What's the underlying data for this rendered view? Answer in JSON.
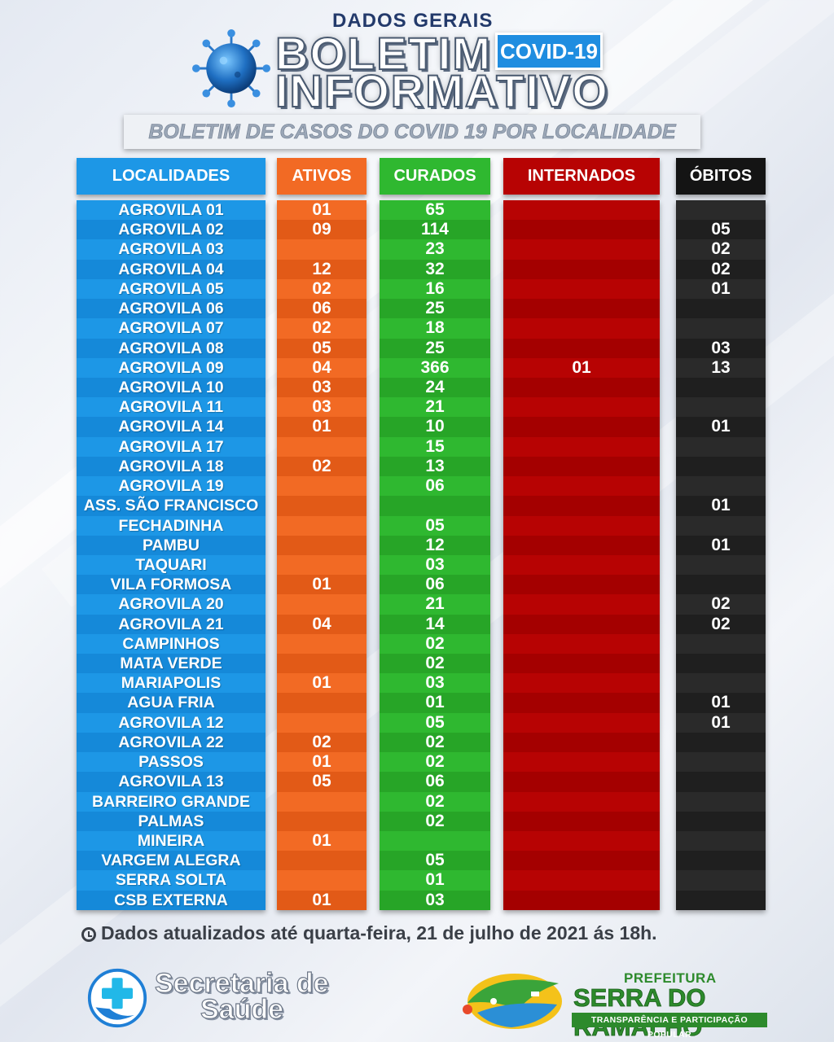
{
  "header": {
    "top_label": "DADOS GERAIS",
    "title_line1": "BOLETIM",
    "title_line2": "INFORMATIVO",
    "badge": "COVID-19",
    "subtitle": "BOLETIM DE CASOS DO COVID 19 POR LOCALIDADE"
  },
  "colors": {
    "localidades": "#1d97e6",
    "ativos": "#f26a24",
    "curados": "#2fb830",
    "internados": "#b70303",
    "obitos": "#1f1f1f"
  },
  "columns": {
    "localidades": "LOCALIDADES",
    "ativos": "ATIVOS",
    "curados": "CURADOS",
    "internados": "INTERNADOS",
    "obitos": "ÓBITOS"
  },
  "rows": [
    {
      "localidade": "AGROVILA 01",
      "ativos": "01",
      "curados": "65",
      "internados": "",
      "obitos": ""
    },
    {
      "localidade": "AGROVILA 02",
      "ativos": "09",
      "curados": "114",
      "internados": "",
      "obitos": "05"
    },
    {
      "localidade": "AGROVILA 03",
      "ativos": "",
      "curados": "23",
      "internados": "",
      "obitos": "02"
    },
    {
      "localidade": "AGROVILA 04",
      "ativos": "12",
      "curados": "32",
      "internados": "",
      "obitos": "02"
    },
    {
      "localidade": "AGROVILA 05",
      "ativos": "02",
      "curados": "16",
      "internados": "",
      "obitos": "01"
    },
    {
      "localidade": "AGROVILA 06",
      "ativos": "06",
      "curados": "25",
      "internados": "",
      "obitos": ""
    },
    {
      "localidade": "AGROVILA 07",
      "ativos": "02",
      "curados": "18",
      "internados": "",
      "obitos": ""
    },
    {
      "localidade": "AGROVILA 08",
      "ativos": "05",
      "curados": "25",
      "internados": "",
      "obitos": "03"
    },
    {
      "localidade": "AGROVILA 09",
      "ativos": "04",
      "curados": "366",
      "internados": "01",
      "obitos": "13"
    },
    {
      "localidade": "AGROVILA 10",
      "ativos": "03",
      "curados": "24",
      "internados": "",
      "obitos": ""
    },
    {
      "localidade": "AGROVILA 11",
      "ativos": "03",
      "curados": "21",
      "internados": "",
      "obitos": ""
    },
    {
      "localidade": "AGROVILA 14",
      "ativos": "01",
      "curados": "10",
      "internados": "",
      "obitos": "01"
    },
    {
      "localidade": "AGROVILA 17",
      "ativos": "",
      "curados": "15",
      "internados": "",
      "obitos": ""
    },
    {
      "localidade": "AGROVILA 18",
      "ativos": "02",
      "curados": "13",
      "internados": "",
      "obitos": ""
    },
    {
      "localidade": "AGROVILA 19",
      "ativos": "",
      "curados": "06",
      "internados": "",
      "obitos": ""
    },
    {
      "localidade": "ASS. SÃO FRANCISCO",
      "ativos": "",
      "curados": "",
      "internados": "",
      "obitos": "01"
    },
    {
      "localidade": "FECHADINHA",
      "ativos": "",
      "curados": "05",
      "internados": "",
      "obitos": ""
    },
    {
      "localidade": "PAMBU",
      "ativos": "",
      "curados": "12",
      "internados": "",
      "obitos": "01"
    },
    {
      "localidade": "TAQUARI",
      "ativos": "",
      "curados": "03",
      "internados": "",
      "obitos": ""
    },
    {
      "localidade": "VILA FORMOSA",
      "ativos": "01",
      "curados": "06",
      "internados": "",
      "obitos": ""
    },
    {
      "localidade": "AGROVILA 20",
      "ativos": "",
      "curados": "21",
      "internados": "",
      "obitos": "02"
    },
    {
      "localidade": "AGROVILA 21",
      "ativos": "04",
      "curados": "14",
      "internados": "",
      "obitos": "02"
    },
    {
      "localidade": "CAMPINHOS",
      "ativos": "",
      "curados": "02",
      "internados": "",
      "obitos": ""
    },
    {
      "localidade": "MATA VERDE",
      "ativos": "",
      "curados": "02",
      "internados": "",
      "obitos": ""
    },
    {
      "localidade": "MARIAPOLIS",
      "ativos": "01",
      "curados": "03",
      "internados": "",
      "obitos": ""
    },
    {
      "localidade": "AGUA FRIA",
      "ativos": "",
      "curados": "01",
      "internados": "",
      "obitos": "01"
    },
    {
      "localidade": "AGROVILA 12",
      "ativos": "",
      "curados": "05",
      "internados": "",
      "obitos": "01"
    },
    {
      "localidade": "AGROVILA 22",
      "ativos": "02",
      "curados": "02",
      "internados": "",
      "obitos": ""
    },
    {
      "localidade": "PASSOS",
      "ativos": "01",
      "curados": "02",
      "internados": "",
      "obitos": ""
    },
    {
      "localidade": "AGROVILA 13",
      "ativos": "05",
      "curados": "06",
      "internados": "",
      "obitos": ""
    },
    {
      "localidade": "BARREIRO GRANDE",
      "ativos": "",
      "curados": "02",
      "internados": "",
      "obitos": ""
    },
    {
      "localidade": "PALMAS",
      "ativos": "",
      "curados": "02",
      "internados": "",
      "obitos": ""
    },
    {
      "localidade": "MINEIRA",
      "ativos": "01",
      "curados": "",
      "internados": "",
      "obitos": ""
    },
    {
      "localidade": "VARGEM ALEGRA",
      "ativos": "",
      "curados": "05",
      "internados": "",
      "obitos": ""
    },
    {
      "localidade": "SERRA SOLTA",
      "ativos": "",
      "curados": "01",
      "internados": "",
      "obitos": ""
    },
    {
      "localidade": "CSB EXTERNA",
      "ativos": "01",
      "curados": "03",
      "internados": "",
      "obitos": ""
    }
  ],
  "footer": {
    "update_note": "Dados atualizados até quarta-feira, 21 de julho de 2021 ás 18h.",
    "secretaria_line1": "Secretaria de",
    "secretaria_line2": "Saúde",
    "prefeitura_small": "PREFEITURA",
    "prefeitura_name": "SERRA DO RAMALHO",
    "prefeitura_slogan": "TRANSPARÊNCIA E PARTICIPAÇÃO POPULAR"
  }
}
